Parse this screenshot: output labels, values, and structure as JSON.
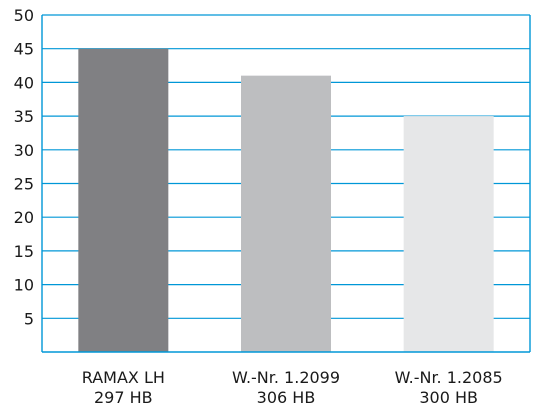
{
  "chart_data": {
    "type": "bar",
    "categories": [
      "RAMAX LH",
      "W.-Nr. 1.2099",
      "W.-Nr. 1.2085"
    ],
    "category_sublabels": [
      "297 HB",
      "306 HB",
      "300 HB"
    ],
    "values": [
      45,
      41,
      35
    ],
    "bar_colors": [
      "#808083",
      "#bdbec0",
      "#e6e7e8"
    ],
    "ylim": [
      0,
      50
    ],
    "yticks": [
      5,
      10,
      15,
      20,
      25,
      30,
      35,
      40,
      45,
      50
    ],
    "grid": true,
    "grid_color": "#0097d7",
    "axis_color": "#0097d7",
    "title": "",
    "xlabel": "",
    "ylabel": ""
  }
}
